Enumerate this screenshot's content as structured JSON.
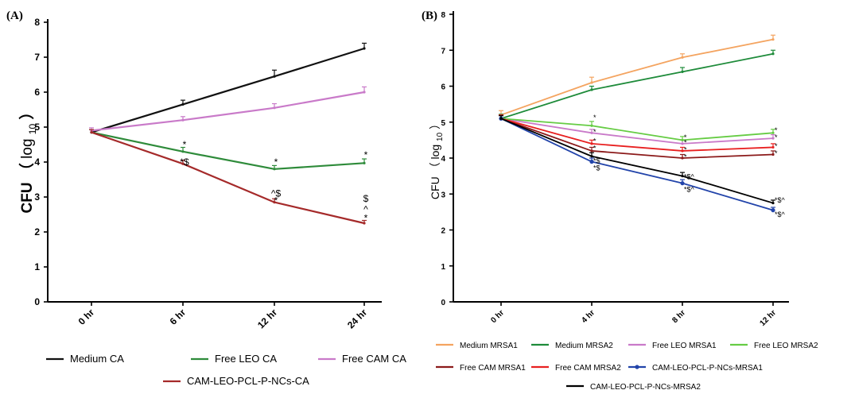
{
  "chart_data": [
    {
      "type": "line",
      "panel": "(A)",
      "ylabel_main": "CFU",
      "ylabel_paren_open": "（",
      "ylabel_log": "log",
      "ylabel_sub": "10",
      "ylabel_paren_close": "）",
      "categories": [
        "0 hr",
        "6 hr",
        "12 hr",
        "24 hr"
      ],
      "ylim": [
        0,
        8
      ],
      "yticks": [
        "0",
        "1",
        "2",
        "3",
        "4",
        "5",
        "6",
        "7",
        "8"
      ],
      "legend_placement": "bottom",
      "series": [
        {
          "name": "Medium CA",
          "color": "#111111",
          "values": [
            4.85,
            5.65,
            6.45,
            7.25
          ],
          "errors": [
            0.08,
            0.12,
            0.18,
            0.15
          ]
        },
        {
          "name": "Free LEO CA",
          "color": "#2e8b3a",
          "values": [
            4.85,
            4.3,
            3.8,
            3.97
          ],
          "errors": [
            0.08,
            0.12,
            0.1,
            0.12
          ]
        },
        {
          "name": "Free CAM CA",
          "color": "#c97ac9",
          "values": [
            4.9,
            5.2,
            5.55,
            6.0
          ],
          "errors": [
            0.08,
            0.1,
            0.12,
            0.15
          ]
        },
        {
          "name": "CAM-LEO-PCL-P-NCs-CA",
          "color": "#a52a2a",
          "values": [
            4.85,
            3.95,
            2.85,
            2.25
          ],
          "errors": [
            0.08,
            0.1,
            0.1,
            0.08
          ]
        }
      ],
      "annotations": [
        {
          "x": "6 hr",
          "text": "*",
          "y": 4.5
        },
        {
          "x": "6 hr",
          "text": "*$",
          "y": 4.0
        },
        {
          "x": "12 hr",
          "text": "*",
          "y": 4.0
        },
        {
          "x": "12 hr",
          "text": "^$",
          "y": 3.1
        },
        {
          "x": "12 hr",
          "text": "*",
          "y": 2.9
        },
        {
          "x": "24 hr",
          "text": "*",
          "y": 4.2
        },
        {
          "x": "24 hr",
          "text": "$",
          "y": 2.95
        },
        {
          "x": "24 hr",
          "text": "^",
          "y": 2.65
        },
        {
          "x": "24 hr",
          "text": "*",
          "y": 2.4
        }
      ]
    },
    {
      "type": "line",
      "panel": "(B)",
      "ylabel_main": "CFU",
      "ylabel_paren_open": "（",
      "ylabel_log": "log",
      "ylabel_sub": "10",
      "ylabel_paren_close": "）",
      "categories": [
        "0 hr",
        "4 hr",
        "8 hr",
        "12 hr"
      ],
      "ylim": [
        0,
        8
      ],
      "yticks": [
        "0",
        "1",
        "2",
        "3",
        "4",
        "5",
        "6",
        "7",
        "8"
      ],
      "legend_placement": "bottom",
      "series": [
        {
          "name": "Medium MRSA1",
          "color": "#f4a460",
          "values": [
            5.2,
            6.1,
            6.8,
            7.3
          ],
          "errors": [
            0.12,
            0.15,
            0.1,
            0.12
          ]
        },
        {
          "name": "Medium MRSA2",
          "color": "#1e8b3a",
          "values": [
            5.1,
            5.9,
            6.4,
            6.9
          ],
          "errors": [
            0.12,
            0.1,
            0.12,
            0.1
          ]
        },
        {
          "name": "Free LEO MRSA1",
          "color": "#c97ac9",
          "values": [
            5.1,
            4.7,
            4.4,
            4.55
          ],
          "errors": [
            0.1,
            0.1,
            0.1,
            0.1
          ]
        },
        {
          "name": "Free LEO MRSA2",
          "color": "#66cc44",
          "values": [
            5.1,
            4.9,
            4.5,
            4.7
          ],
          "errors": [
            0.1,
            0.12,
            0.1,
            0.1
          ]
        },
        {
          "name": "Free CAM MRSA1",
          "color": "#8b1a1a",
          "values": [
            5.1,
            4.2,
            4.0,
            4.1
          ],
          "errors": [
            0.1,
            0.1,
            0.1,
            0.1
          ]
        },
        {
          "name": "Free CAM MRSA2",
          "color": "#e82020",
          "values": [
            5.1,
            4.4,
            4.2,
            4.3
          ],
          "errors": [
            0.1,
            0.1,
            0.1,
            0.1
          ]
        },
        {
          "name": "CAM-LEO-PCL-P-NCs-MRSA1",
          "color": "#2244aa",
          "values": [
            5.1,
            3.9,
            3.3,
            2.55
          ],
          "errors": [
            0.08,
            0.1,
            0.1,
            0.08
          ],
          "marker": true
        },
        {
          "name": "CAM-LEO-PCL-P-NCs-MRSA2",
          "color": "#000000",
          "values": [
            5.1,
            4.05,
            3.5,
            2.75
          ],
          "errors": [
            0.08,
            0.1,
            0.1,
            0.08
          ]
        }
      ],
      "annotations": [
        {
          "x": "4 hr",
          "text": "*",
          "y": 5.15
        },
        {
          "x": "4 hr",
          "text": "*",
          "y": 4.75
        },
        {
          "x": "4 hr",
          "text": "*",
          "y": 4.5
        },
        {
          "x": "4 hr",
          "text": "*",
          "y": 4.3
        },
        {
          "x": "4 hr",
          "text": "*$",
          "y": 3.95
        },
        {
          "x": "4 hr",
          "text": "*$",
          "y": 3.75
        },
        {
          "x": "8 hr",
          "text": "*",
          "y": 4.6
        },
        {
          "x": "8 hr",
          "text": "*",
          "y": 4.45
        },
        {
          "x": "8 hr",
          "text": "*",
          "y": 4.25
        },
        {
          "x": "8 hr",
          "text": "*",
          "y": 4.05
        },
        {
          "x": "8 hr",
          "text": "*$^",
          "y": 3.5
        },
        {
          "x": "8 hr",
          "text": "*$^",
          "y": 3.15
        },
        {
          "x": "12 hr",
          "text": "*",
          "y": 4.8
        },
        {
          "x": "12 hr",
          "text": "*",
          "y": 4.6
        },
        {
          "x": "12 hr",
          "text": "*",
          "y": 4.35
        },
        {
          "x": "12 hr",
          "text": "*",
          "y": 4.15
        },
        {
          "x": "12 hr",
          "text": "*$^",
          "y": 2.85
        },
        {
          "x": "12 hr",
          "text": "*$^",
          "y": 2.45
        }
      ]
    }
  ]
}
